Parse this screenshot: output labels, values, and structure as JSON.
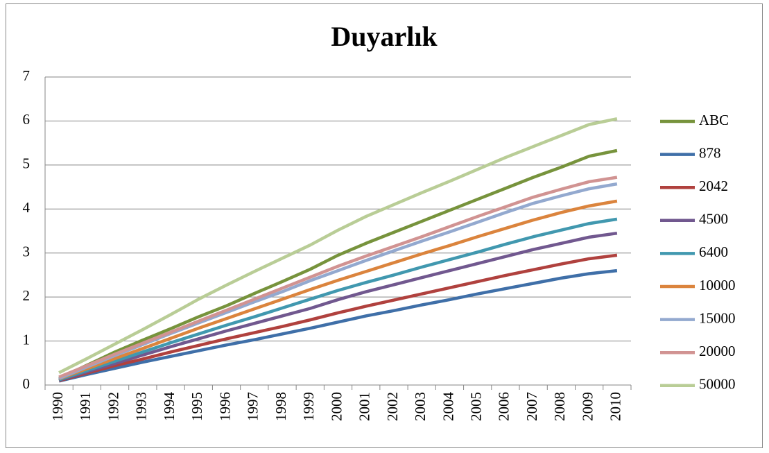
{
  "chart_data": {
    "type": "line",
    "title": "Duyarlık",
    "categories": [
      "1990",
      "1991",
      "1992",
      "1993",
      "1994",
      "1995",
      "1996",
      "1997",
      "1998",
      "1999",
      "2000",
      "2001",
      "2002",
      "2003",
      "2004",
      "2005",
      "2006",
      "2007",
      "2008",
      "2009",
      "2010"
    ],
    "ylim": [
      0,
      7
    ],
    "yticks": [
      0,
      1,
      2,
      3,
      4,
      5,
      6,
      7
    ],
    "grid": true,
    "legend": "right",
    "series": [
      {
        "name": "ABC",
        "color": "#77933c",
        "values": [
          0.15,
          0.45,
          0.75,
          1.02,
          1.28,
          1.55,
          1.8,
          2.08,
          2.35,
          2.63,
          2.95,
          3.22,
          3.47,
          3.72,
          3.97,
          4.22,
          4.47,
          4.72,
          4.95,
          5.2,
          5.33
        ]
      },
      {
        "name": "878",
        "color": "#3f6fa8",
        "values": [
          0.09,
          0.24,
          0.38,
          0.52,
          0.65,
          0.78,
          0.91,
          1.03,
          1.16,
          1.29,
          1.43,
          1.57,
          1.69,
          1.82,
          1.94,
          2.07,
          2.19,
          2.31,
          2.43,
          2.53,
          2.6
        ]
      },
      {
        "name": "2042",
        "color": "#b0413e",
        "values": [
          0.1,
          0.27,
          0.44,
          0.59,
          0.75,
          0.9,
          1.05,
          1.19,
          1.33,
          1.48,
          1.64,
          1.79,
          1.93,
          2.07,
          2.21,
          2.35,
          2.49,
          2.62,
          2.75,
          2.87,
          2.95
        ]
      },
      {
        "name": "4500",
        "color": "#71588f",
        "values": [
          0.11,
          0.3,
          0.49,
          0.68,
          0.87,
          1.05,
          1.23,
          1.4,
          1.57,
          1.74,
          1.94,
          2.12,
          2.28,
          2.44,
          2.6,
          2.76,
          2.92,
          3.08,
          3.22,
          3.36,
          3.45
        ]
      },
      {
        "name": "6400",
        "color": "#4198af",
        "values": [
          0.12,
          0.33,
          0.54,
          0.75,
          0.96,
          1.16,
          1.36,
          1.55,
          1.75,
          1.95,
          2.15,
          2.33,
          2.5,
          2.68,
          2.85,
          3.02,
          3.2,
          3.37,
          3.52,
          3.67,
          3.77
        ]
      },
      {
        "name": "10000",
        "color": "#db843d",
        "values": [
          0.14,
          0.37,
          0.6,
          0.83,
          1.06,
          1.29,
          1.51,
          1.73,
          1.95,
          2.17,
          2.38,
          2.58,
          2.78,
          2.98,
          3.17,
          3.37,
          3.56,
          3.75,
          3.92,
          4.07,
          4.18
        ]
      },
      {
        "name": "15000",
        "color": "#93a9cf",
        "values": [
          0.15,
          0.41,
          0.67,
          0.92,
          1.17,
          1.41,
          1.65,
          1.89,
          2.12,
          2.37,
          2.6,
          2.83,
          3.05,
          3.27,
          3.48,
          3.7,
          3.92,
          4.13,
          4.3,
          4.46,
          4.57
        ]
      },
      {
        "name": "20000",
        "color": "#d19392",
        "values": [
          0.18,
          0.44,
          0.7,
          0.95,
          1.2,
          1.45,
          1.7,
          1.95,
          2.2,
          2.45,
          2.7,
          2.93,
          3.15,
          3.37,
          3.6,
          3.83,
          4.05,
          4.27,
          4.45,
          4.62,
          4.72
        ]
      },
      {
        "name": "50000",
        "color": "#b9cd96",
        "values": [
          0.28,
          0.6,
          0.93,
          1.26,
          1.6,
          1.95,
          2.27,
          2.58,
          2.88,
          3.18,
          3.52,
          3.83,
          4.1,
          4.37,
          4.63,
          4.9,
          5.17,
          5.42,
          5.67,
          5.92,
          6.05
        ]
      }
    ]
  }
}
